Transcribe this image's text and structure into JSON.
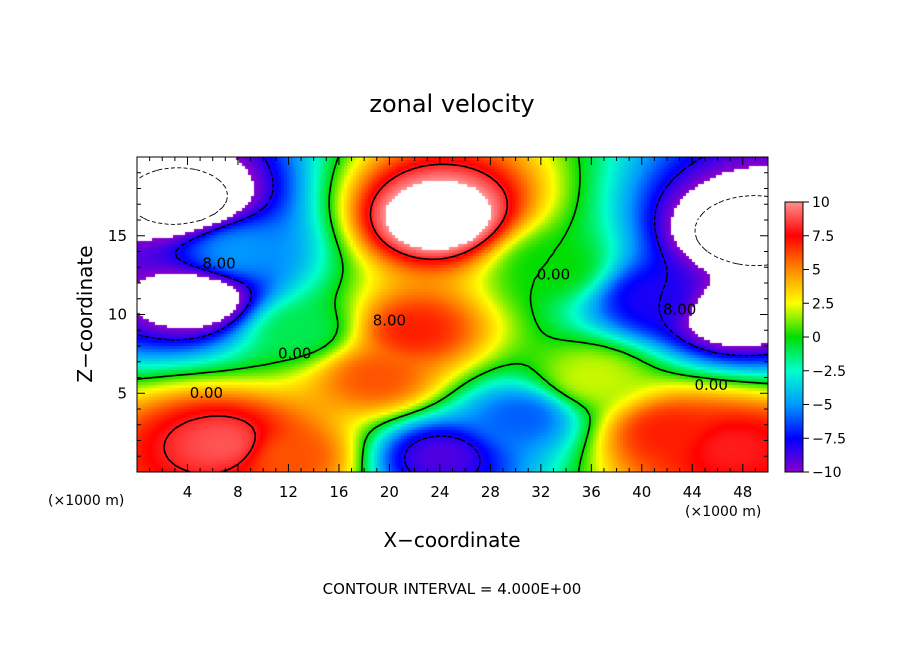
{
  "chart_data": {
    "type": "heatmap",
    "title": "zonal velocity",
    "xlabel": "X−coordinate",
    "ylabel": "Z−coordinate",
    "x_unit_label": "(×1000 m)",
    "z_unit_label": "(×1000 m)",
    "xlim": [
      0,
      50
    ],
    "ylim": [
      0,
      20
    ],
    "x_ticks": [
      4,
      8,
      12,
      16,
      20,
      24,
      28,
      32,
      36,
      40,
      44,
      48
    ],
    "x_tick_labels": [
      "4",
      "8",
      "12",
      "16",
      "20",
      "24",
      "28",
      "32",
      "36",
      "40",
      "44",
      "48"
    ],
    "y_ticks": [
      5,
      10,
      15
    ],
    "y_tick_labels": [
      "5",
      "10",
      "15"
    ],
    "colorbar": {
      "range": [
        -10,
        10
      ],
      "ticks": [
        10,
        7.5,
        5,
        2.5,
        0,
        -2.5,
        -5,
        -7.5,
        -10
      ],
      "tick_labels": [
        "10",
        "7.5",
        "5",
        "2.5",
        "0",
        "−2.5",
        "−5",
        "−7.5",
        "−10"
      ],
      "colors": [
        "#ff9090",
        "#ff0000",
        "#ff8800",
        "#ffff00",
        "#00dd00",
        "#00ffcc",
        "#0099ff",
        "#0000ff",
        "#8800cc"
      ]
    },
    "features": [
      {
        "x": 24,
        "z": 16,
        "value": 12
      },
      {
        "x": 22,
        "z": 9,
        "value": 7
      },
      {
        "x": 19,
        "z": 6,
        "value": 6
      },
      {
        "x": 42,
        "z": 2.5,
        "value": 7
      },
      {
        "x": 47,
        "z": 1.5,
        "value": 8
      },
      {
        "x": 7,
        "z": 1.8,
        "value": 9
      },
      {
        "x": 12,
        "z": 1,
        "value": 6
      },
      {
        "x": 24,
        "z": 1,
        "value": -9
      },
      {
        "x": 4,
        "z": 17,
        "value": -13
      },
      {
        "x": 5,
        "z": 11,
        "value": -12
      },
      {
        "x": 48,
        "z": 15,
        "value": -13
      },
      {
        "x": 47,
        "z": 10,
        "value": -12
      },
      {
        "x": 41,
        "z": 11,
        "value": -8
      },
      {
        "x": 30.5,
        "z": 3.5,
        "value": -6
      },
      {
        "x": 13,
        "z": 9,
        "value": -1
      },
      {
        "x": 33,
        "z": 13,
        "value": 0
      },
      {
        "x": 36,
        "z": 6,
        "value": 2
      },
      {
        "x": 8,
        "z": 14,
        "value": -5
      }
    ],
    "contour_labels": [
      {
        "text": "8.00",
        "x": 6.5,
        "z": 13.2
      },
      {
        "text": "8.00",
        "x": 20,
        "z": 9.6
      },
      {
        "text": "8.00",
        "x": 43,
        "z": 10.3
      },
      {
        "text": "0.00",
        "x": 12.5,
        "z": 7.5
      },
      {
        "text": "0.00",
        "x": 33,
        "z": 12.5
      },
      {
        "text": "0.00",
        "x": 5.5,
        "z": 5
      },
      {
        "text": "0.00",
        "x": 45.5,
        "z": 5.5
      }
    ],
    "footnote": "CONTOUR INTERVAL = 4.000E+00"
  }
}
